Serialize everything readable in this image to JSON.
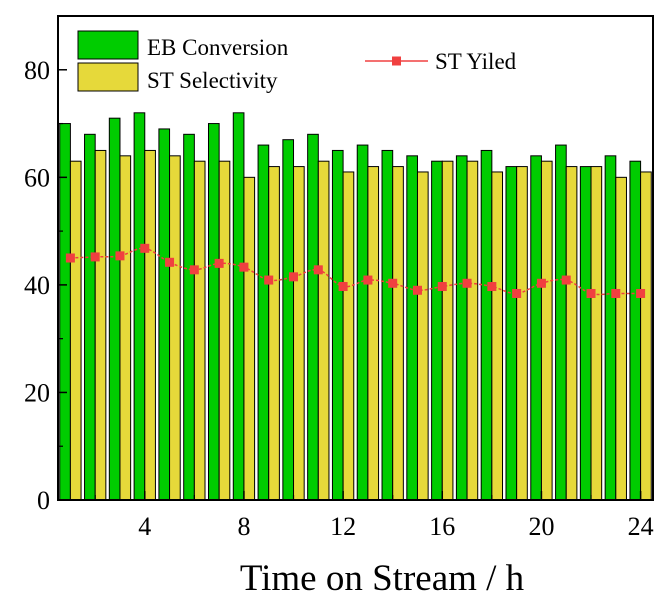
{
  "chart_data": {
    "type": "bar",
    "xlabel": "Time on Stream / h",
    "ylabel": "",
    "xlim": [
      0.5,
      24.5
    ],
    "ylim": [
      0,
      90
    ],
    "xticks": [
      4,
      8,
      12,
      16,
      20,
      24
    ],
    "yticks": [
      0,
      20,
      40,
      60,
      80
    ],
    "x": [
      1,
      2,
      3,
      4,
      5,
      6,
      7,
      8,
      9,
      10,
      11,
      12,
      13,
      14,
      15,
      16,
      17,
      18,
      19,
      20,
      21,
      22,
      23,
      24
    ],
    "series": [
      {
        "name": "EB Conversion",
        "type": "bar",
        "color": "#00cc00",
        "values": [
          70,
          68,
          71,
          72,
          69,
          68,
          70,
          72,
          66,
          67,
          68,
          65,
          66,
          65,
          64,
          63,
          64,
          65,
          62,
          64,
          66,
          62,
          64,
          63
        ]
      },
      {
        "name": "ST Selectivity",
        "type": "bar",
        "color": "#e6d93a",
        "values": [
          63,
          65,
          64,
          65,
          64,
          63,
          63,
          60,
          62,
          62,
          63,
          61,
          62,
          62,
          61,
          63,
          63,
          61,
          62,
          63,
          62,
          62,
          60,
          61
        ]
      },
      {
        "name": "ST Yiled",
        "type": "line",
        "color": "#f04040",
        "values": [
          45.0,
          45.2,
          45.4,
          46.8,
          44.2,
          42.8,
          44.0,
          43.3,
          40.9,
          41.5,
          42.8,
          39.7,
          40.9,
          40.3,
          39.0,
          39.7,
          40.3,
          39.7,
          38.4,
          40.3,
          40.9,
          38.4,
          38.4,
          38.4
        ]
      }
    ],
    "legend": "top-left",
    "grid": false
  }
}
